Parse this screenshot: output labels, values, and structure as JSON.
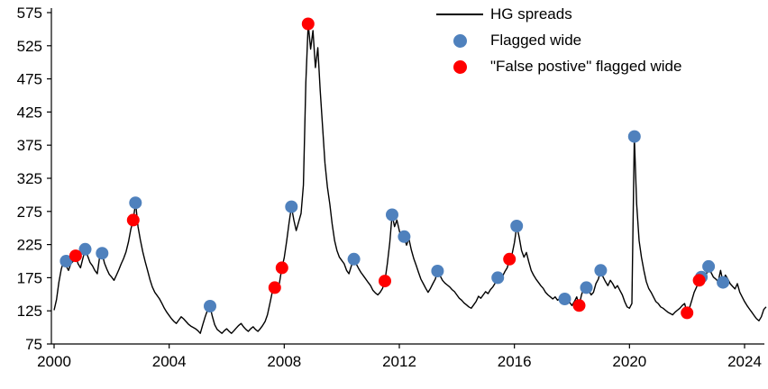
{
  "chart_data": {
    "type": "line",
    "title": "",
    "xlabel": "",
    "ylabel": "",
    "ylim": [
      75,
      575
    ],
    "yticks": [
      75,
      125,
      175,
      225,
      275,
      325,
      375,
      425,
      475,
      525,
      575
    ],
    "xlim": [
      2000,
      2024
    ],
    "xticks": [
      2000,
      2004,
      2008,
      2012,
      2016,
      2020,
      2024
    ],
    "grid": false,
    "legend_position": "top-right",
    "legend": [
      {
        "label": "HG spreads",
        "type": "line",
        "color": "#000000"
      },
      {
        "label": "Flagged wide",
        "type": "dot",
        "color": "#4f81bd"
      },
      {
        "label": "\"False postive\" flagged wide",
        "type": "dot",
        "color": "#ff0000"
      }
    ],
    "series": {
      "name": "HG spreads",
      "x_start": 2000,
      "x_step": 0.0833333,
      "y": [
        126,
        142,
        168,
        188,
        200,
        193,
        186,
        196,
        200,
        208,
        196,
        190,
        204,
        218,
        208,
        198,
        193,
        186,
        181,
        206,
        212,
        197,
        188,
        180,
        176,
        171,
        179,
        187,
        196,
        204,
        214,
        229,
        248,
        262,
        288,
        252,
        232,
        214,
        199,
        186,
        172,
        161,
        153,
        148,
        143,
        136,
        129,
        123,
        118,
        113,
        109,
        106,
        111,
        116,
        113,
        109,
        105,
        102,
        100,
        98,
        95,
        91,
        104,
        116,
        126,
        132,
        117,
        104,
        97,
        94,
        91,
        95,
        98,
        94,
        91,
        95,
        99,
        103,
        106,
        101,
        97,
        94,
        98,
        101,
        97,
        94,
        98,
        103,
        109,
        119,
        136,
        153,
        160,
        154,
        167,
        190,
        205,
        230,
        258,
        282,
        262,
        246,
        259,
        272,
        315,
        470,
        558,
        520,
        548,
        492,
        522,
        458,
        402,
        348,
        312,
        286,
        256,
        231,
        216,
        206,
        201,
        196,
        186,
        181,
        193,
        203,
        196,
        189,
        183,
        178,
        173,
        168,
        163,
        156,
        152,
        149,
        153,
        159,
        170,
        196,
        228,
        270,
        252,
        262,
        246,
        231,
        237,
        224,
        234,
        217,
        204,
        194,
        183,
        173,
        166,
        159,
        153,
        159,
        166,
        173,
        185,
        178,
        171,
        167,
        164,
        161,
        157,
        154,
        149,
        144,
        141,
        137,
        134,
        131,
        129,
        134,
        139,
        147,
        144,
        149,
        154,
        151,
        157,
        161,
        167,
        175,
        171,
        177,
        184,
        190,
        203,
        210,
        228,
        253,
        236,
        216,
        206,
        213,
        199,
        186,
        179,
        173,
        168,
        163,
        159,
        153,
        149,
        146,
        143,
        146,
        141,
        144,
        139,
        143,
        136,
        138,
        133,
        139,
        146,
        133,
        149,
        160,
        153,
        156,
        149,
        153,
        166,
        173,
        186,
        176,
        169,
        163,
        171,
        166,
        159,
        163,
        156,
        149,
        139,
        131,
        129,
        136,
        388,
        286,
        231,
        206,
        186,
        169,
        159,
        153,
        146,
        139,
        136,
        131,
        129,
        126,
        123,
        121,
        119,
        123,
        126,
        129,
        133,
        136,
        122,
        129,
        141,
        153,
        161,
        171,
        176,
        169,
        179,
        192,
        183,
        176,
        173,
        169,
        186,
        168,
        179,
        173,
        166,
        162,
        158,
        166,
        153,
        146,
        139,
        133,
        128,
        123,
        118,
        113,
        110,
        116,
        127,
        131
      ]
    },
    "flagged_wide": [
      [
        2000.42,
        200
      ],
      [
        2001.08,
        218
      ],
      [
        2001.67,
        212
      ],
      [
        2002.83,
        288
      ],
      [
        2005.42,
        132
      ],
      [
        2008.25,
        282
      ],
      [
        2010.42,
        203
      ],
      [
        2011.75,
        270
      ],
      [
        2012.17,
        237
      ],
      [
        2013.33,
        185
      ],
      [
        2015.42,
        175
      ],
      [
        2016.08,
        253
      ],
      [
        2017.75,
        143
      ],
      [
        2018.5,
        160
      ],
      [
        2019.0,
        186
      ],
      [
        2020.17,
        388
      ],
      [
        2022.5,
        176
      ],
      [
        2022.75,
        192
      ],
      [
        2023.25,
        168
      ]
    ],
    "false_positive": [
      [
        2000.75,
        208
      ],
      [
        2002.75,
        262
      ],
      [
        2007.67,
        160
      ],
      [
        2007.92,
        190
      ],
      [
        2008.83,
        558
      ],
      [
        2011.5,
        170
      ],
      [
        2015.83,
        203
      ],
      [
        2018.25,
        133
      ],
      [
        2022.0,
        122
      ],
      [
        2022.42,
        171
      ]
    ]
  }
}
